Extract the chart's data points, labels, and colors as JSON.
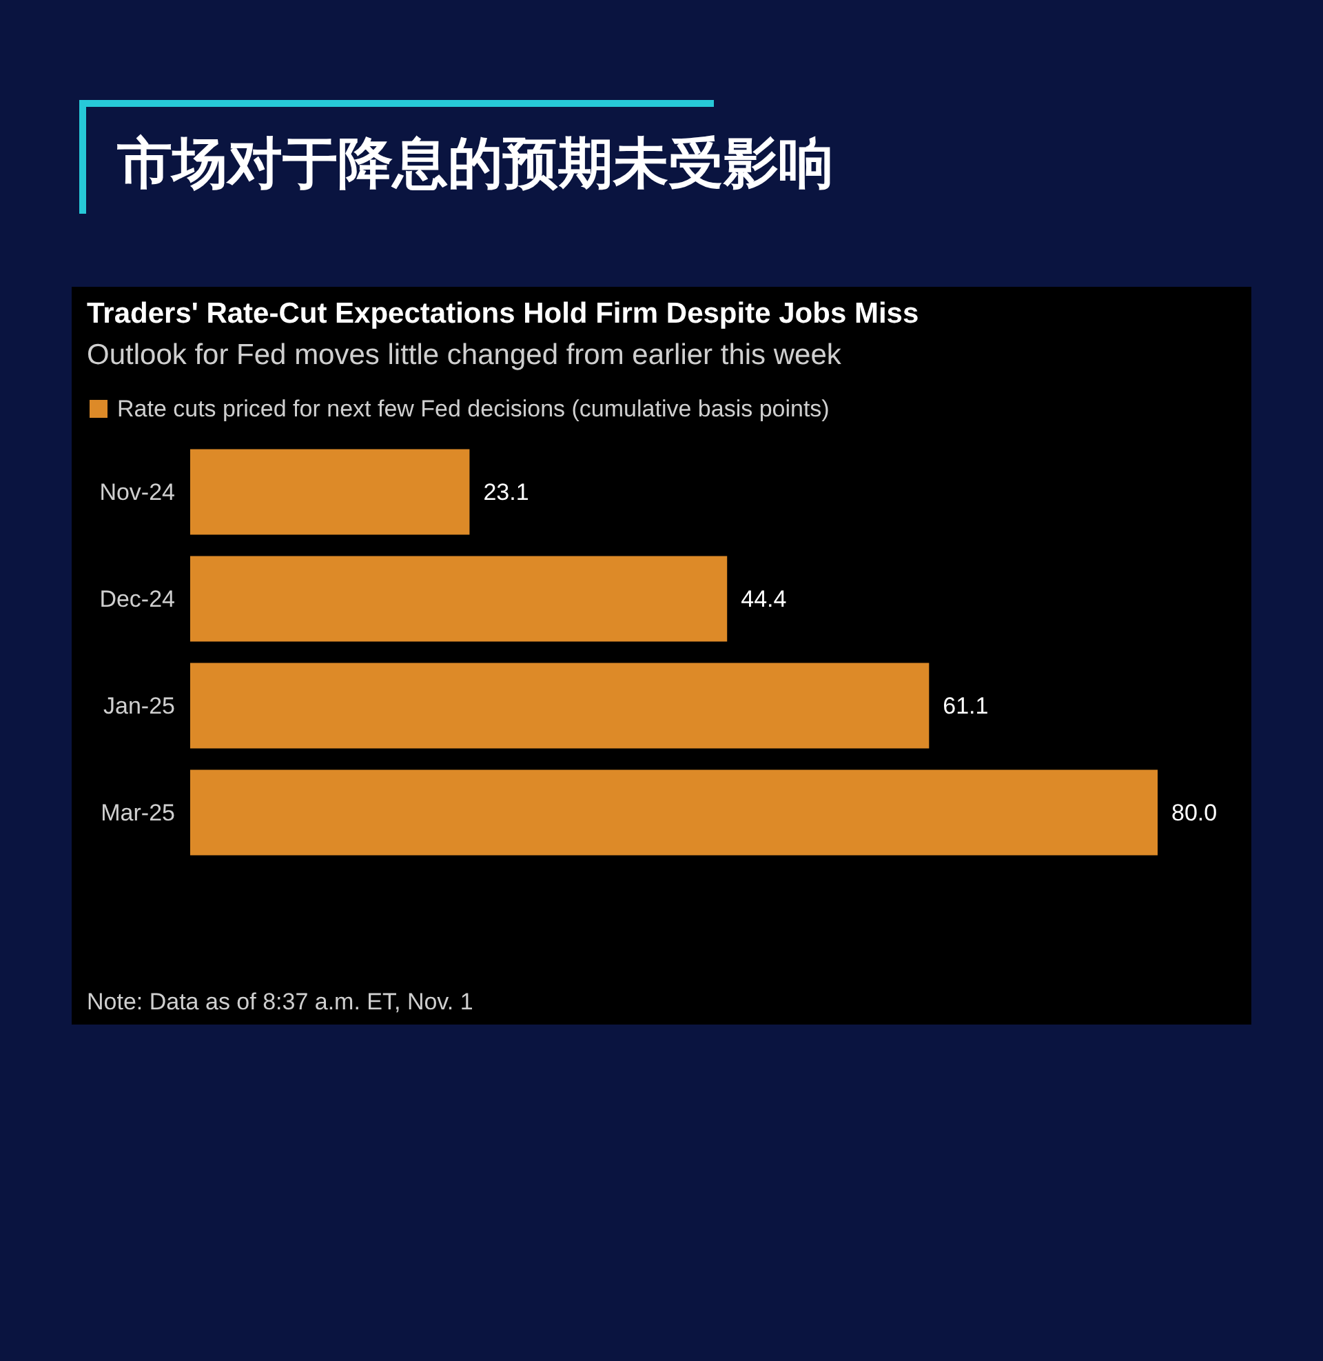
{
  "chart_data": {
    "type": "bar",
    "orientation": "horizontal",
    "title": "市场对于降息的预期未受影响",
    "subtitle": "Traders' Rate-Cut Expectations Hold Firm Despite Jobs Miss",
    "annotations": [
      "Outlook for Fed moves little changed from earlier this week",
      "Note: Data as of 8:37 a.m. ET, Nov. 1"
    ],
    "categories": [
      "Nov-24",
      "Dec-24",
      "Jan-25",
      "Mar-25"
    ],
    "series": [
      {
        "name": "Rate cuts priced for next few Fed decisions (cumulative basis points)",
        "color": "#dd8a28",
        "values": [
          23.1,
          44.4,
          61.1,
          80.0
        ],
        "value_labels": [
          "23.1",
          "44.4",
          "61.1",
          "80.0"
        ]
      }
    ],
    "legend": "top left",
    "grid": false
  }
}
